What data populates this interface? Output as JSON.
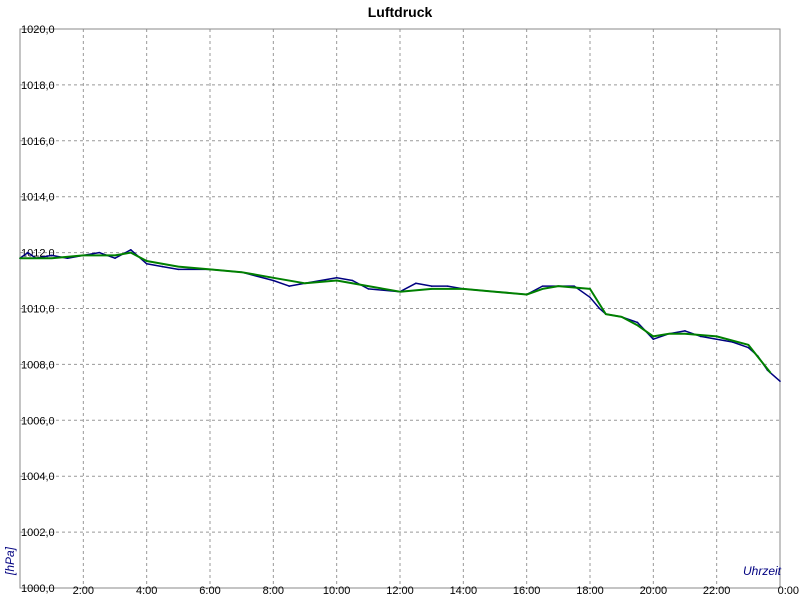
{
  "chart_data": {
    "type": "line",
    "title": "Luftdruck",
    "ylabel": "[hPa]",
    "xlabel": "Uhrzeit",
    "ylim": [
      1000,
      1020
    ],
    "xlim": [
      0,
      24
    ],
    "grid": true,
    "y_ticks": [
      "1000,0",
      "1002,0",
      "1004,0",
      "1006,0",
      "1008,0",
      "1010,0",
      "1012,0",
      "1014,0",
      "1016,0",
      "1018,0",
      "1020,0"
    ],
    "x_ticks": [
      "2:00",
      "4:00",
      "6:00",
      "8:00",
      "10:00",
      "12:00",
      "14:00",
      "16:00",
      "18:00",
      "20:00",
      "22:00",
      "0:00"
    ],
    "series": [
      {
        "color": "#000080",
        "x": [
          0,
          0.25,
          0.5,
          1,
          1.5,
          2,
          2.5,
          3,
          3.5,
          4,
          4.5,
          5,
          6,
          7,
          8,
          8.5,
          9,
          10,
          10.5,
          11,
          12,
          12.5,
          13,
          13.5,
          14,
          15,
          16,
          16.5,
          17,
          17.5,
          18,
          18.3,
          18.5,
          19,
          19.5,
          20,
          20.5,
          21,
          21.5,
          22,
          22.5,
          23,
          23.3,
          23.6,
          24
        ],
        "y": [
          1011.8,
          1012.0,
          1011.8,
          1011.9,
          1011.8,
          1011.9,
          1012.0,
          1011.8,
          1012.1,
          1011.6,
          1011.5,
          1011.4,
          1011.4,
          1011.3,
          1011.0,
          1010.8,
          1010.9,
          1011.1,
          1011.0,
          1010.7,
          1010.6,
          1010.9,
          1010.8,
          1010.8,
          1010.7,
          1010.6,
          1010.5,
          1010.8,
          1010.8,
          1010.8,
          1010.4,
          1010.0,
          1009.8,
          1009.7,
          1009.5,
          1008.9,
          1009.1,
          1009.2,
          1009.0,
          1008.9,
          1008.8,
          1008.6,
          1008.3,
          1007.8,
          1007.4
        ]
      },
      {
        "color": "#008000",
        "x": [
          0,
          1,
          2,
          3,
          3.5,
          4,
          5,
          6,
          7,
          8,
          9,
          10,
          11,
          12,
          13,
          14,
          15,
          16,
          16.5,
          17,
          18,
          18.5,
          19,
          19.5,
          20,
          20.5,
          21,
          22,
          23,
          23.7
        ],
        "y": [
          1011.8,
          1011.8,
          1011.9,
          1011.9,
          1012.0,
          1011.7,
          1011.5,
          1011.4,
          1011.3,
          1011.1,
          1010.9,
          1011.0,
          1010.8,
          1010.6,
          1010.7,
          1010.7,
          1010.6,
          1010.5,
          1010.7,
          1010.8,
          1010.7,
          1009.8,
          1009.7,
          1009.4,
          1009.0,
          1009.1,
          1009.1,
          1009.0,
          1008.7,
          1007.7
        ]
      }
    ]
  }
}
